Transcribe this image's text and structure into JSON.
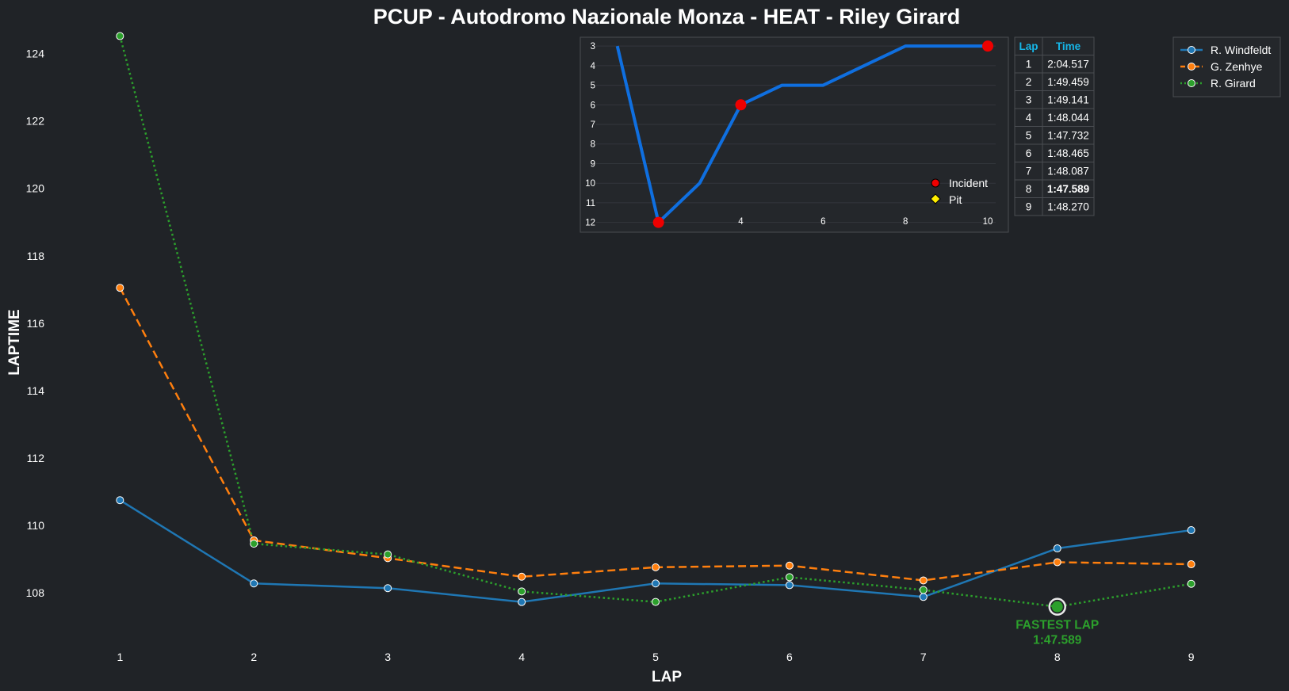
{
  "chart_data": [
    {
      "type": "line",
      "title": "PCUP - Autodromo Nazionale Monza - HEAT - Riley Girard",
      "xlabel": "LAP",
      "ylabel": "LAPTIME",
      "x": [
        1,
        2,
        3,
        4,
        5,
        6,
        7,
        8,
        9
      ],
      "x_ticks": [
        1,
        2,
        3,
        4,
        5,
        6,
        7,
        8,
        9
      ],
      "y_ticks": [
        108,
        110,
        112,
        114,
        116,
        118,
        120,
        122,
        124
      ],
      "xlim": [
        0.4,
        9.6
      ],
      "ylim": [
        106.5,
        124.6
      ],
      "grid": false,
      "legend_position": "top-right",
      "series": [
        {
          "name": "R. Windfeldt",
          "color": "#1f77b4",
          "style": "solid",
          "values": [
            110.75,
            108.28,
            108.14,
            107.73,
            108.28,
            108.23,
            107.88,
            109.32,
            109.86
          ]
        },
        {
          "name": "G. Zenhye",
          "color": "#ff7f0e",
          "style": "dashed",
          "values": [
            117.05,
            109.56,
            109.03,
            108.48,
            108.76,
            108.81,
            108.37,
            108.91,
            108.85
          ]
        },
        {
          "name": "R. Girard",
          "color": "#2ca02c",
          "style": "dotted",
          "values": [
            124.517,
            109.459,
            109.141,
            108.044,
            107.732,
            108.465,
            108.087,
            107.589,
            108.27
          ]
        }
      ],
      "annotation": {
        "lap": 8,
        "value": 107.589,
        "line1": "FASTEST LAP",
        "line2": "1:47.589"
      }
    },
    {
      "type": "line",
      "title": "",
      "x": [
        1,
        2,
        3,
        4,
        5,
        6,
        7,
        8,
        9,
        10
      ],
      "values": [
        3,
        12,
        10,
        6,
        5,
        5,
        4,
        3,
        3,
        3
      ],
      "x_ticks": [
        2,
        4,
        6,
        8,
        10
      ],
      "y_ticks": [
        3,
        4,
        5,
        6,
        7,
        8,
        9,
        10,
        11,
        12
      ],
      "xlim": [
        0.1,
        10.5
      ],
      "ylim_inverted": [
        2.55,
        12.5
      ],
      "color": "#0f6fe0",
      "incidents": [
        2,
        4,
        10
      ],
      "pits": [],
      "legend": [
        {
          "label": "Incident",
          "color": "#ee0000"
        },
        {
          "label": "Pit",
          "color": "#ffee00"
        }
      ]
    },
    {
      "type": "table",
      "columns": [
        "Lap",
        "Time"
      ],
      "rows": [
        [
          "1",
          "2:04.517"
        ],
        [
          "2",
          "1:49.459"
        ],
        [
          "3",
          "1:49.141"
        ],
        [
          "4",
          "1:48.044"
        ],
        [
          "5",
          "1:47.732"
        ],
        [
          "6",
          "1:48.465"
        ],
        [
          "7",
          "1:48.087"
        ],
        [
          "8",
          "1:47.589"
        ],
        [
          "9",
          "1:48.270"
        ]
      ],
      "highlight_row": 8,
      "highlight_color": "#ffee00",
      "header_color": "#16b6e8"
    }
  ],
  "colors": {
    "background": "#202327",
    "inset_background": "#24272b",
    "border": "#4a4d52"
  }
}
